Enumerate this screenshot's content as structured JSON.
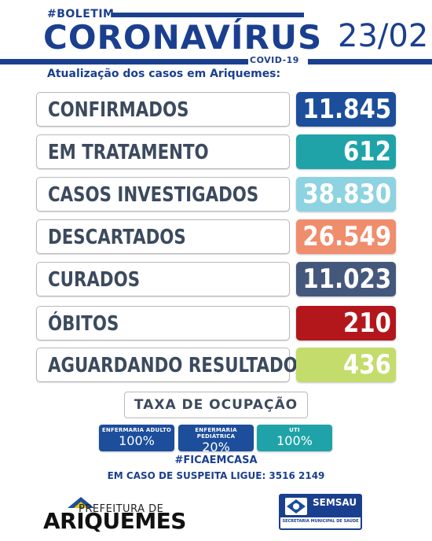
{
  "header": {
    "tag": "#BOLETIM",
    "title": "CORONAVÍRUS",
    "subtitle_small": "COVID-19",
    "date": "23/02",
    "update_line": "Atualização dos casos em Ariquemes:"
  },
  "rows": [
    {
      "label": "CONFIRMADOS",
      "value": "11.845",
      "color": "#1c4e9c"
    },
    {
      "label": "EM TRATAMENTO",
      "value": "612",
      "color": "#1fa3a8"
    },
    {
      "label": "CASOS INVESTIGADOS",
      "value": "38.830",
      "color": "#8dd3e2"
    },
    {
      "label": "DESCARTADOS",
      "value": "26.549",
      "color": "#ef8d6d"
    },
    {
      "label": "CURADOS",
      "value": "11.023",
      "color": "#44587b"
    },
    {
      "label": "ÓBITOS",
      "value": "210",
      "color": "#b3171c"
    },
    {
      "label": "AGUARDANDO RESULTADO",
      "value": "436",
      "color": "#c4dc6c"
    }
  ],
  "occupancy": {
    "title": "TAXA DE OCUPAÇÃO",
    "items": [
      {
        "label": "ENFERMARIA ADULTO",
        "value": "100%",
        "color": "#1c4e9c"
      },
      {
        "label": "ENFERMARIA PEDIÁTRICA",
        "value": "20%",
        "color": "#1c4e9c"
      },
      {
        "label": "UTI",
        "value": "100%",
        "color": "#1fa3a8"
      }
    ]
  },
  "footer": {
    "hashtag": "#FICAEMCASA",
    "phone_line": "EM CASO DE SUSPEITA LIGUE: 3516 2149",
    "prefeitura": "PREFEITURA DE",
    "city": "ARIQUEMES",
    "semsau": "SEMSAU",
    "semsau_sub": "SECRETARIA MUNICIPAL DE SAÚDE"
  }
}
